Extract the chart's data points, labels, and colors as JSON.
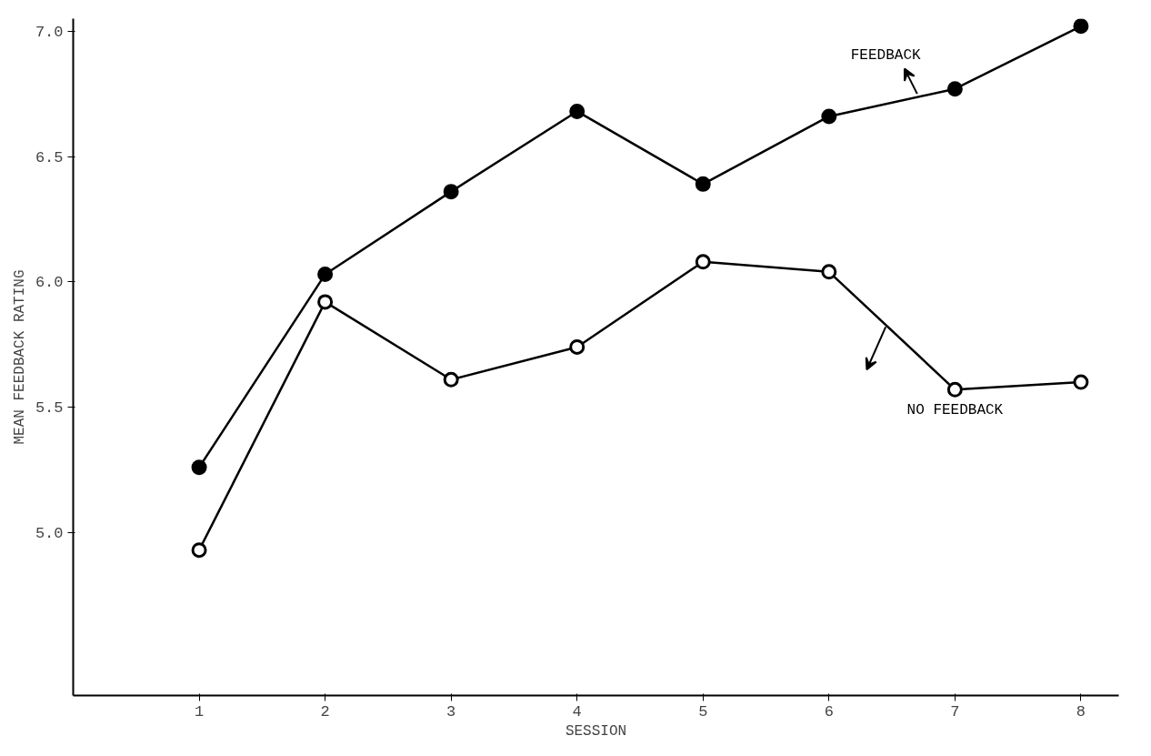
{
  "chart_data": {
    "type": "line",
    "xlabel": "SESSION",
    "ylabel": "MEAN FEEDBACK RATING",
    "x": [
      1,
      2,
      3,
      4,
      5,
      6,
      7,
      8
    ],
    "series": [
      {
        "name": "FEEDBACK",
        "color": "#000000",
        "values": [
          5.26,
          6.03,
          6.36,
          6.68,
          6.39,
          6.66,
          6.77,
          7.02
        ]
      },
      {
        "name": "NO FEEDBACK",
        "color": "#000000",
        "values": [
          4.93,
          5.92,
          5.61,
          5.74,
          6.08,
          6.04,
          5.57,
          5.6
        ]
      }
    ],
    "xlim": [
      0,
      8.3
    ],
    "ylim": [
      4.35,
      7.05
    ],
    "xticks": [
      1,
      2,
      3,
      4,
      5,
      6,
      7,
      8
    ],
    "yticks": [
      {
        "value": 5,
        "label": "5.0"
      },
      {
        "value": 5.5,
        "label": "5.5"
      },
      {
        "value": 6,
        "label": "6.0"
      },
      {
        "value": 6.5,
        "label": "6.5"
      },
      {
        "value": 7,
        "label": "7.0"
      }
    ],
    "marker": "circle",
    "line_style": "solid",
    "grid": false,
    "legend": false
  }
}
